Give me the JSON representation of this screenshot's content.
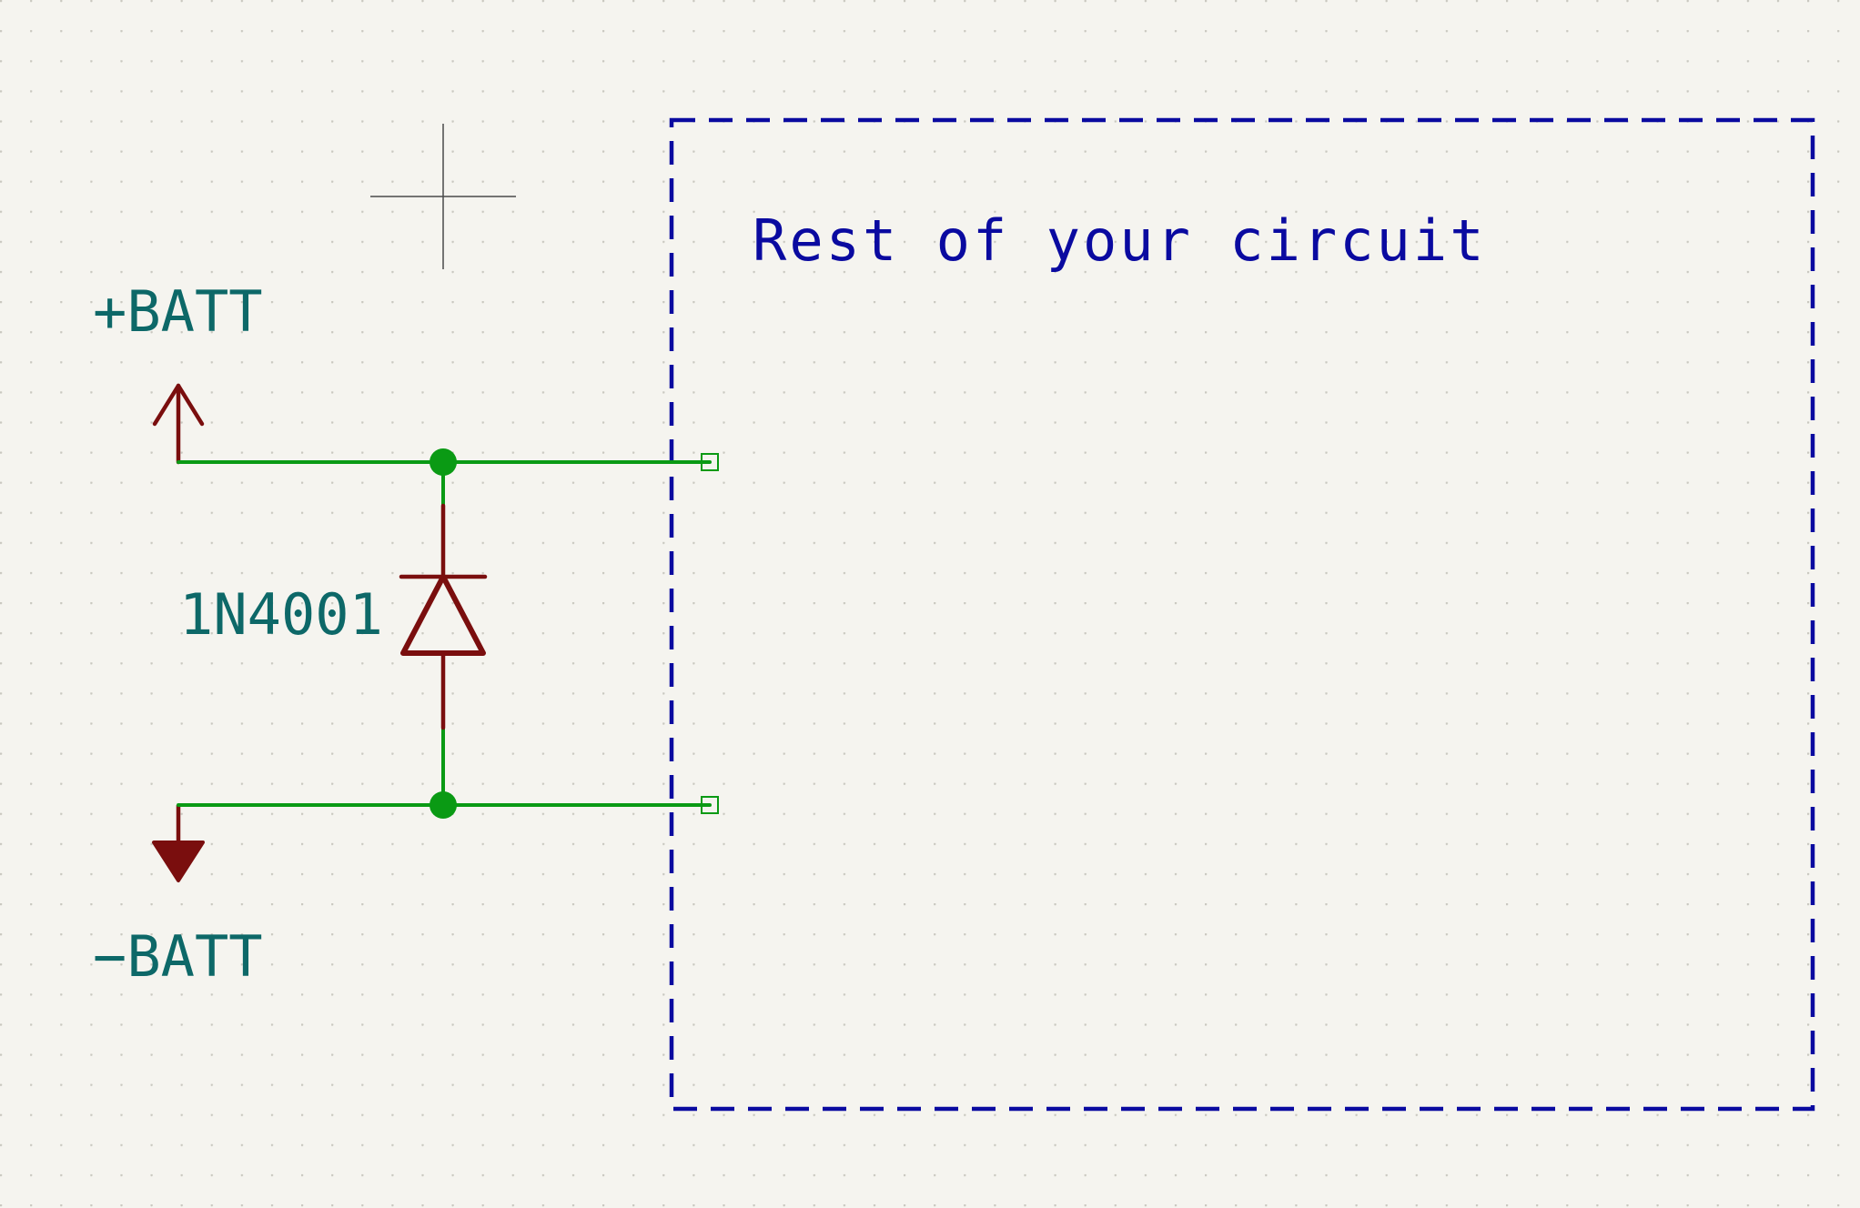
{
  "schematic": {
    "power_positive": {
      "label": "+BATT"
    },
    "power_negative": {
      "label": "−BATT"
    },
    "diode": {
      "value": "1N4001"
    },
    "circuit_box": {
      "label": "Rest of your circuit"
    }
  },
  "colors": {
    "background": "#f5f4ef",
    "grid_dot": "#c9c8c0",
    "wire": "#0a9a14",
    "junction": "#0a9a14",
    "symbol": "#7a0e0e",
    "net_label": "#0d6868",
    "note_text": "#0a0aa0",
    "box_outline": "#0a0aa0",
    "cursor": "#4a4a4a"
  }
}
